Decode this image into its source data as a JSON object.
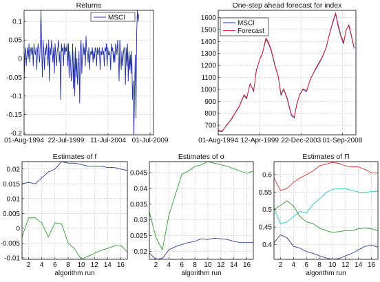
{
  "chart_data": [
    {
      "type": "line",
      "title": "Returns",
      "xlabel": "",
      "ylabel": "",
      "legend": {
        "position": "top-right"
      },
      "x_tick_labels": [
        "01-Aug-1994",
        "22-Jul-1999",
        "11-Jul-2004",
        "01-Jul-2009"
      ],
      "y_tick_labels": [
        "-0.2",
        "-0.15",
        "-0.1",
        "-0.05",
        "0",
        "0.05",
        "0.1"
      ],
      "xlim": [
        1994.58,
        2009.9
      ],
      "ylim": [
        -0.205,
        0.13
      ],
      "grid": true,
      "series": [
        {
          "name": "MSCI",
          "color": "#1f2fa0",
          "x_start": 1994.58,
          "x_step": 0.0833,
          "values": [
            -0.06,
            0.01,
            0.03,
            -0.02,
            0.01,
            0.03,
            0.0,
            0.04,
            -0.01,
            0.02,
            0.03,
            0.01,
            0.03,
            -0.02,
            0.04,
            0.02,
            0.01,
            0.03,
            -0.03,
            0.02,
            0.04,
            0.01,
            -0.01,
            0.04,
            0.13,
            0.03,
            -0.05,
            0.05,
            0.02,
            -0.03,
            0.03,
            0.01,
            0.04,
            0.02,
            -0.02,
            0.05,
            -0.06,
            0.03,
            0.01,
            0.05,
            0.02,
            -0.01,
            0.03,
            -0.04,
            0.04,
            0.01,
            -0.02,
            0.02,
            0.03,
            0.05,
            -0.01,
            0.02,
            -0.11,
            0.04,
            0.02,
            0.03,
            -0.02,
            0.04,
            0.01,
            0.03,
            0.02,
            0.04,
            -0.02,
            0.04,
            -0.05,
            0.02,
            -0.01,
            -0.06,
            -0.03,
            0.04,
            -0.08,
            0.02,
            -0.1,
            0.03,
            -0.05,
            0.0,
            -0.07,
            -0.03,
            0.02,
            -0.12,
            0.03,
            0.05,
            -0.04,
            0.01,
            0.04,
            0.01,
            0.03,
            -0.02,
            0.06,
            0.02,
            0.02,
            -0.01,
            0.03,
            -0.03,
            0.01,
            0.02,
            0.01,
            0.03,
            -0.01,
            0.02,
            0.0,
            0.03,
            0.02,
            -0.02,
            0.03,
            0.01,
            0.02,
            0.03,
            -0.03,
            0.02,
            0.01,
            0.03,
            0.01,
            0.02,
            -0.02,
            0.03,
            0.02,
            0.04,
            -0.02,
            0.03,
            0.01,
            0.01,
            0.02,
            -0.03,
            0.04,
            0.02,
            0.03,
            -0.01,
            0.02,
            -0.01,
            0.04,
            0.03,
            0.01,
            0.05,
            0.01,
            -0.06,
            0.05,
            0.01,
            -0.03,
            0.02,
            -0.02,
            0.01,
            0.03,
            0.02,
            -0.07,
            0.03,
            -0.02,
            0.04,
            -0.06,
            0.02,
            -0.03,
            0.01,
            -0.04,
            0.02,
            -0.11,
            -0.06,
            -0.21,
            -0.09,
            0.01,
            -0.16,
            0.07,
            0.13,
            0.1,
            0.12
          ]
        }
      ]
    },
    {
      "type": "line",
      "title": "One-step ahead forecast for index",
      "xlabel": "",
      "ylabel": "",
      "legend": {
        "position": "top-left"
      },
      "x_tick_labels": [
        "01-Aug-1994",
        "12-Apr-1999",
        "22-Dec-2003",
        "01-Sep-2008"
      ],
      "y_tick_labels": [
        "700",
        "800",
        "900",
        "1000",
        "1100",
        "1200",
        "1300",
        "1400",
        "1500",
        "1600"
      ],
      "xlim": [
        1994.58,
        2010.2
      ],
      "ylim": [
        620,
        1660
      ],
      "grid": true,
      "series": [
        {
          "name": "MSCI",
          "color": "#1f2fa0",
          "points": [
            [
              1994.58,
              650
            ],
            [
              1995.0,
              645
            ],
            [
              1995.5,
              700
            ],
            [
              1996.0,
              740
            ],
            [
              1996.5,
              800
            ],
            [
              1997.0,
              860
            ],
            [
              1997.5,
              950
            ],
            [
              1997.8,
              920
            ],
            [
              1998.2,
              1050
            ],
            [
              1998.6,
              980
            ],
            [
              1998.9,
              1160
            ],
            [
              1999.3,
              1250
            ],
            [
              1999.6,
              1300
            ],
            [
              2000.0,
              1420
            ],
            [
              2000.3,
              1380
            ],
            [
              2000.6,
              1320
            ],
            [
              2001.0,
              1200
            ],
            [
              2001.4,
              1100
            ],
            [
              2001.7,
              950
            ],
            [
              2002.0,
              1000
            ],
            [
              2002.4,
              920
            ],
            [
              2002.7,
              830
            ],
            [
              2002.9,
              780
            ],
            [
              2003.2,
              760
            ],
            [
              2003.5,
              880
            ],
            [
              2003.8,
              950
            ],
            [
              2004.2,
              1000
            ],
            [
              2004.6,
              980
            ],
            [
              2005.0,
              1080
            ],
            [
              2005.5,
              1150
            ],
            [
              2005.9,
              1200
            ],
            [
              2006.4,
              1270
            ],
            [
              2006.8,
              1340
            ],
            [
              2007.2,
              1460
            ],
            [
              2007.6,
              1560
            ],
            [
              2007.9,
              1630
            ],
            [
              2008.2,
              1520
            ],
            [
              2008.5,
              1440
            ],
            [
              2008.8,
              1380
            ],
            [
              2009.1,
              1500
            ],
            [
              2009.4,
              1530
            ],
            [
              2009.7,
              1440
            ],
            [
              2010.0,
              1340
            ]
          ]
        },
        {
          "name": "Forecast",
          "color": "#e8242a",
          "points": [
            [
              1994.58,
              660
            ],
            [
              1995.0,
              650
            ],
            [
              1995.5,
              695
            ],
            [
              1996.0,
              745
            ],
            [
              1996.5,
              805
            ],
            [
              1997.0,
              865
            ],
            [
              1997.5,
              955
            ],
            [
              1997.8,
              930
            ],
            [
              1998.2,
              1045
            ],
            [
              1998.6,
              990
            ],
            [
              1998.9,
              1150
            ],
            [
              1999.3,
              1255
            ],
            [
              1999.6,
              1305
            ],
            [
              2000.0,
              1430
            ],
            [
              2000.3,
              1390
            ],
            [
              2000.6,
              1330
            ],
            [
              2001.0,
              1210
            ],
            [
              2001.4,
              1105
            ],
            [
              2001.7,
              960
            ],
            [
              2002.0,
              1005
            ],
            [
              2002.4,
              930
            ],
            [
              2002.7,
              840
            ],
            [
              2002.9,
              790
            ],
            [
              2003.2,
              770
            ],
            [
              2003.5,
              870
            ],
            [
              2003.8,
              955
            ],
            [
              2004.2,
              1005
            ],
            [
              2004.6,
              990
            ],
            [
              2005.0,
              1075
            ],
            [
              2005.5,
              1155
            ],
            [
              2005.9,
              1210
            ],
            [
              2006.4,
              1275
            ],
            [
              2006.8,
              1345
            ],
            [
              2007.2,
              1465
            ],
            [
              2007.6,
              1570
            ],
            [
              2007.9,
              1640
            ],
            [
              2008.2,
              1535
            ],
            [
              2008.5,
              1450
            ],
            [
              2008.8,
              1395
            ],
            [
              2009.1,
              1495
            ],
            [
              2009.4,
              1540
            ],
            [
              2009.7,
              1450
            ],
            [
              2010.0,
              1350
            ]
          ]
        }
      ]
    },
    {
      "type": "line",
      "title": "Estimates of f",
      "xlabel": "algorithm run",
      "ylabel": "",
      "x_tick_labels": [
        "2",
        "4",
        "6",
        "8",
        "10",
        "12",
        "14",
        "16"
      ],
      "y_tick_labels": [
        "-0.01",
        "-0.005",
        "0",
        "0.005",
        "0.01",
        "0.015",
        "0.02"
      ],
      "xlim": [
        1,
        17
      ],
      "ylim": [
        -0.0105,
        0.0225
      ],
      "grid": true,
      "x": [
        1,
        2,
        3,
        4,
        5,
        6,
        7,
        8,
        9,
        10,
        11,
        12,
        13,
        14,
        15,
        16,
        17
      ],
      "series": [
        {
          "color": "#2b3a9a",
          "values": [
            0.015,
            0.0155,
            0.015,
            0.017,
            0.019,
            0.02,
            0.0225,
            0.022,
            0.022,
            0.0215,
            0.021,
            0.021,
            0.021,
            0.0205,
            0.0205,
            0.02,
            0.0195
          ]
        },
        {
          "color": "#2f9a2f",
          "values": [
            -0.003,
            0.0035,
            0.0035,
            0.0018,
            -0.003,
            0.0018,
            0.0015,
            -0.005,
            -0.007,
            -0.0105,
            -0.0095,
            -0.0085,
            -0.0075,
            -0.0068,
            -0.006,
            -0.0058,
            -0.008
          ]
        }
      ]
    },
    {
      "type": "line",
      "title": "Estimates of σ",
      "xlabel": "algorithm run",
      "ylabel": "",
      "x_tick_labels": [
        "2",
        "4",
        "6",
        "8",
        "10",
        "12",
        "14",
        "16"
      ],
      "y_tick_labels": [
        "0.02",
        "0.025",
        "0.03",
        "0.035",
        "0.04",
        "0.045"
      ],
      "xlim": [
        1,
        17
      ],
      "ylim": [
        0.0175,
        0.0485
      ],
      "grid": true,
      "x": [
        1,
        2,
        3,
        4,
        5,
        6,
        7,
        8,
        9,
        10,
        11,
        12,
        13,
        14,
        15,
        16,
        17
      ],
      "series": [
        {
          "color": "#2b3a9a",
          "values": [
            0.0195,
            0.0175,
            0.0178,
            0.0205,
            0.0215,
            0.0222,
            0.0228,
            0.0232,
            0.024,
            0.0238,
            0.0242,
            0.024,
            0.0238,
            0.0232,
            0.0228,
            0.0228,
            0.0228
          ]
        },
        {
          "color": "#2f9a2f",
          "values": [
            0.0325,
            0.0245,
            0.0205,
            0.0315,
            0.038,
            0.0445,
            0.0455,
            0.047,
            0.0475,
            0.0485,
            0.048,
            0.0475,
            0.047,
            0.0462,
            0.0455,
            0.0448,
            0.0455
          ]
        }
      ]
    },
    {
      "type": "line",
      "title": "Estimates of Π",
      "xlabel": "algorithm run",
      "ylabel": "",
      "x_tick_labels": [
        "2",
        "4",
        "6",
        "8",
        "10",
        "12",
        "14",
        "16"
      ],
      "y_tick_labels": [
        "0.4",
        "0.45",
        "0.5",
        "0.55",
        "0.6"
      ],
      "xlim": [
        1,
        17
      ],
      "ylim": [
        0.358,
        0.637
      ],
      "grid": true,
      "x": [
        1,
        2,
        3,
        4,
        5,
        6,
        7,
        8,
        9,
        10,
        11,
        12,
        13,
        14,
        15,
        16,
        17
      ],
      "series": [
        {
          "color": "#d8322f",
          "values": [
            0.59,
            0.555,
            0.56,
            0.578,
            0.59,
            0.6,
            0.61,
            0.625,
            0.63,
            0.635,
            0.632,
            0.625,
            0.622,
            0.622,
            0.615,
            0.605,
            0.605
          ]
        },
        {
          "color": "#2bc4c4",
          "values": [
            0.505,
            0.46,
            0.465,
            0.48,
            0.495,
            0.49,
            0.515,
            0.53,
            0.548,
            0.558,
            0.56,
            0.56,
            0.555,
            0.55,
            0.548,
            0.552,
            0.552
          ]
        },
        {
          "color": "#2f9a2f",
          "values": [
            0.5,
            0.512,
            0.525,
            0.51,
            0.48,
            0.465,
            0.46,
            0.447,
            0.44,
            0.435,
            0.437,
            0.44,
            0.44,
            0.445,
            0.447,
            0.445,
            0.44
          ]
        },
        {
          "color": "#2b3a9a",
          "values": [
            0.405,
            0.428,
            0.42,
            0.395,
            0.39,
            0.38,
            0.375,
            0.368,
            0.362,
            0.358,
            0.36,
            0.368,
            0.375,
            0.385,
            0.395,
            0.398,
            0.393
          ]
        }
      ]
    }
  ]
}
